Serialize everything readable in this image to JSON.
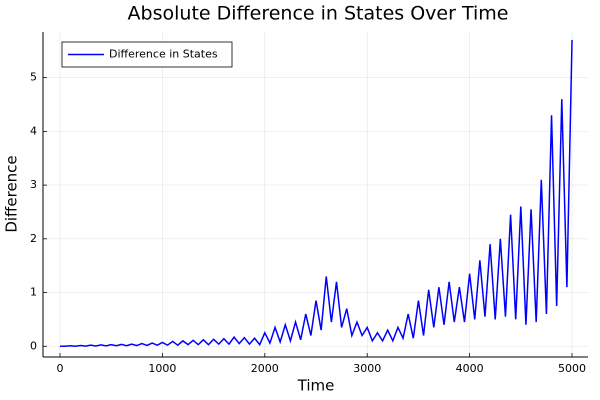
{
  "chart_data": {
    "type": "line",
    "title": "Absolute Difference in States Over Time",
    "xlabel": "Time",
    "ylabel": "Difference",
    "legend": "top-left",
    "grid": true,
    "xlim": [
      -166,
      5156
    ],
    "ylim": [
      -0.2,
      5.85
    ],
    "xticks": [
      0,
      1000,
      2000,
      3000,
      4000,
      5000
    ],
    "yticks": [
      0,
      1,
      2,
      3,
      4,
      5
    ],
    "x": [
      0,
      50,
      100,
      150,
      200,
      250,
      300,
      350,
      400,
      450,
      500,
      550,
      600,
      650,
      700,
      750,
      800,
      850,
      900,
      950,
      1000,
      1050,
      1100,
      1150,
      1200,
      1250,
      1300,
      1350,
      1400,
      1450,
      1500,
      1550,
      1600,
      1650,
      1700,
      1750,
      1800,
      1850,
      1900,
      1950,
      2000,
      2050,
      2100,
      2150,
      2200,
      2250,
      2300,
      2350,
      2400,
      2450,
      2500,
      2550,
      2600,
      2650,
      2700,
      2750,
      2800,
      2850,
      2900,
      2950,
      3000,
      3050,
      3100,
      3150,
      3200,
      3250,
      3300,
      3350,
      3400,
      3450,
      3500,
      3550,
      3600,
      3650,
      3700,
      3750,
      3800,
      3850,
      3900,
      3950,
      4000,
      4050,
      4100,
      4150,
      4200,
      4250,
      4300,
      4350,
      4400,
      4450,
      4500,
      4550,
      4600,
      4650,
      4700,
      4750,
      4800,
      4850,
      4900,
      4950,
      5000
    ],
    "series": [
      {
        "name": "Difference in States",
        "color": "#0000ff",
        "values": [
          0,
          0,
          0.01,
          0,
          0.015,
          0.003,
          0.02,
          0.005,
          0.025,
          0.007,
          0.03,
          0.01,
          0.035,
          0.01,
          0.04,
          0.012,
          0.05,
          0.015,
          0.06,
          0.02,
          0.07,
          0.02,
          0.09,
          0.02,
          0.1,
          0.03,
          0.11,
          0.03,
          0.12,
          0.03,
          0.13,
          0.04,
          0.14,
          0.04,
          0.17,
          0.05,
          0.16,
          0.04,
          0.15,
          0.03,
          0.25,
          0.06,
          0.35,
          0.08,
          0.4,
          0.1,
          0.45,
          0.12,
          0.6,
          0.2,
          0.85,
          0.3,
          1.3,
          0.45,
          1.2,
          0.35,
          0.7,
          0.2,
          0.45,
          0.2,
          0.35,
          0.1,
          0.25,
          0.1,
          0.3,
          0.1,
          0.35,
          0.15,
          0.6,
          0.15,
          0.85,
          0.2,
          1.05,
          0.35,
          1.1,
          0.4,
          1.2,
          0.45,
          1.1,
          0.45,
          1.35,
          0.5,
          1.6,
          0.55,
          1.9,
          0.5,
          2.0,
          0.55,
          2.45,
          0.5,
          2.6,
          0.4,
          2.55,
          0.45,
          3.1,
          0.6,
          4.3,
          0.75,
          4.6,
          1.1,
          5.7
        ]
      }
    ]
  }
}
